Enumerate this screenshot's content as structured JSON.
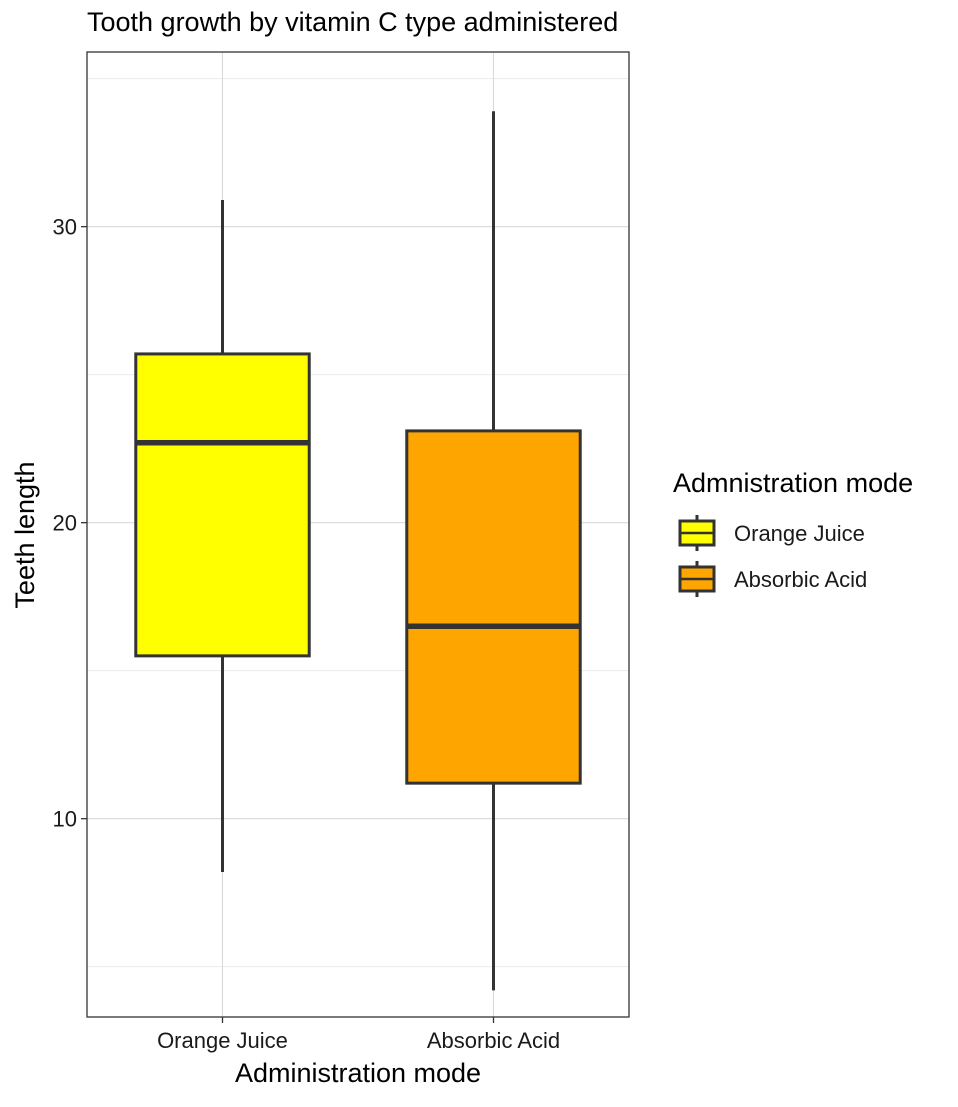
{
  "chart_data": {
    "type": "boxplot",
    "title": "Tooth growth by vitamin C type administered",
    "xlabel": "Administration mode",
    "ylabel": "Teeth length",
    "ylim": [
      3.3,
      35.9
    ],
    "y_ticks": [
      10,
      20,
      30
    ],
    "y_minor_ticks": [
      5,
      15,
      25,
      35
    ],
    "grid": true,
    "legend": {
      "title": "Admnistration mode",
      "placement": "right",
      "entries": [
        "Orange Juice",
        "Absorbic Acid"
      ]
    },
    "categories": [
      "Orange Juice",
      "Absorbic Acid"
    ],
    "series": [
      {
        "name": "Orange Juice",
        "color": "#FFFF00",
        "min": 8.2,
        "q1": 15.5,
        "median": 22.7,
        "q3": 25.7,
        "max": 30.9
      },
      {
        "name": "Absorbic Acid",
        "color": "#FFA500",
        "min": 4.2,
        "q1": 11.2,
        "median": 16.5,
        "q3": 23.1,
        "max": 33.9
      }
    ]
  }
}
